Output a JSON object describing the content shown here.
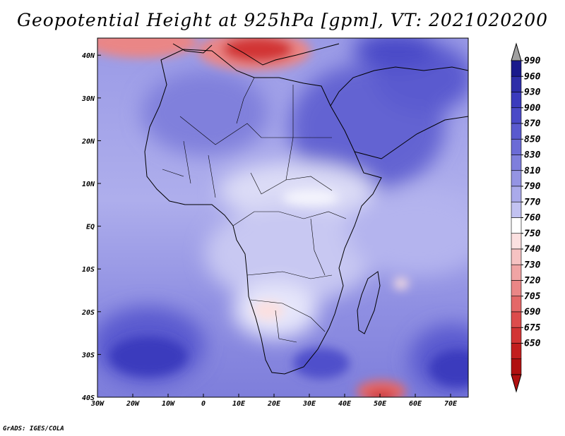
{
  "title": "Geopotential Height at 925hPa [gpm], VT: 2021020200",
  "footer": "GrADS: IGES/COLA",
  "chart_data": {
    "type": "heatmap",
    "title": "Geopotential Height at 925hPa [gpm], VT: 2021020200",
    "variable": "Geopotential Height",
    "level": "925hPa",
    "units": "gpm",
    "valid_time": "2021020200",
    "lon_range": [
      -30,
      75
    ],
    "lat_range": [
      -40,
      44
    ],
    "x_ticks": [
      {
        "lon": -30,
        "label": "30W"
      },
      {
        "lon": -20,
        "label": "20W"
      },
      {
        "lon": -10,
        "label": "10W"
      },
      {
        "lon": 0,
        "label": "0"
      },
      {
        "lon": 10,
        "label": "10E"
      },
      {
        "lon": 20,
        "label": "20E"
      },
      {
        "lon": 30,
        "label": "30E"
      },
      {
        "lon": 40,
        "label": "40E"
      },
      {
        "lon": 50,
        "label": "50E"
      },
      {
        "lon": 60,
        "label": "60E"
      },
      {
        "lon": 70,
        "label": "70E"
      }
    ],
    "y_ticks": [
      {
        "lat": 40,
        "label": "40N"
      },
      {
        "lat": 30,
        "label": "30N"
      },
      {
        "lat": 20,
        "label": "20N"
      },
      {
        "lat": 10,
        "label": "10N"
      },
      {
        "lat": 0,
        "label": "EQ"
      },
      {
        "lat": -10,
        "label": "10S"
      },
      {
        "lat": -20,
        "label": "20S"
      },
      {
        "lat": -30,
        "label": "30S"
      },
      {
        "lat": -40,
        "label": "40S"
      }
    ],
    "colorbar": {
      "levels": [
        "990",
        "960",
        "930",
        "900",
        "870",
        "850",
        "830",
        "810",
        "790",
        "770",
        "760",
        "750",
        "740",
        "730",
        "720",
        "705",
        "690",
        "675",
        "650"
      ],
      "colors": [
        "#1a1a8c",
        "#2e2ea8",
        "#3b3bbd",
        "#4a4ac7",
        "#5a5acf",
        "#6b6bd6",
        "#7f7fdc",
        "#9494e3",
        "#aaaaea",
        "#c2c2f1",
        "#ffffff",
        "#fbe0e0",
        "#f6c2c2",
        "#f0a4a4",
        "#ea8686",
        "#e46868",
        "#dc4c4c",
        "#d23434",
        "#c21e1e",
        "#b01010"
      ],
      "top_color": "#a0a0a0",
      "bottom_color": "#b01010"
    },
    "features": [
      {
        "name": "high-southwest-atlantic",
        "lon": -20,
        "lat": -31,
        "value": 870
      },
      {
        "name": "high-southeast-indian",
        "lon": 72,
        "lat": -32,
        "value": 870
      },
      {
        "name": "low-mediterranean",
        "lon": 16,
        "lat": 41,
        "value": 690
      },
      {
        "name": "low-iberia-northwest",
        "lon": -26,
        "lat": 44,
        "value": 720
      },
      {
        "name": "low-southwest-indian",
        "lon": 53,
        "lat": -39,
        "value": 720
      },
      {
        "name": "high-arabia",
        "lon": 45,
        "lat": 22,
        "value": 850
      },
      {
        "name": "thermal-low-kalahari",
        "lon": 21,
        "lat": -20,
        "value": 750
      }
    ]
  }
}
